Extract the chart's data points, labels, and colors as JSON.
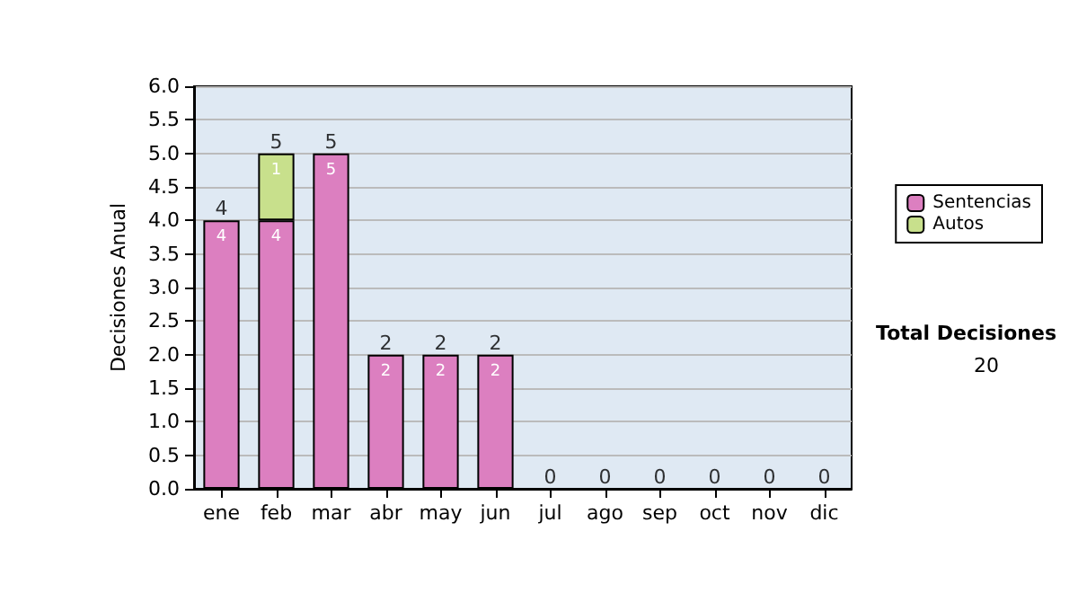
{
  "chart_data": {
    "type": "bar",
    "ylabel": "Decisiones Anual",
    "categories": [
      "ene",
      "feb",
      "mar",
      "abr",
      "may",
      "jun",
      "jul",
      "ago",
      "sep",
      "oct",
      "nov",
      "dic"
    ],
    "stacked": true,
    "series": [
      {
        "name": "Sentencias",
        "color": "#dc7fc0",
        "values": [
          4,
          4,
          5,
          2,
          2,
          2,
          0,
          0,
          0,
          0,
          0,
          0
        ],
        "value_labels": [
          "4",
          "4",
          "5",
          "2",
          "2",
          "2",
          null,
          null,
          null,
          null,
          null,
          null
        ]
      },
      {
        "name": "Autos",
        "color": "#c8e08c",
        "values": [
          0,
          1,
          0,
          0,
          0,
          0,
          0,
          0,
          0,
          0,
          0,
          0
        ],
        "value_labels": [
          null,
          "1",
          null,
          null,
          null,
          null,
          null,
          null,
          null,
          null,
          null,
          null
        ]
      }
    ],
    "totals": [
      "4",
      "5",
      "5",
      "2",
      "2",
      "2",
      "0",
      "0",
      "0",
      "0",
      "0",
      "0"
    ],
    "ylim": [
      0,
      6
    ],
    "yticks": [
      {
        "value": 0,
        "label": "0.0"
      },
      {
        "value": 0.5,
        "label": "0.5"
      },
      {
        "value": 1,
        "label": "1.0"
      },
      {
        "value": 1.5,
        "label": "1.5"
      },
      {
        "value": 2,
        "label": "2.0"
      },
      {
        "value": 2.5,
        "label": "2.5"
      },
      {
        "value": 3,
        "label": "3.0"
      },
      {
        "value": 3.5,
        "label": "3.5"
      },
      {
        "value": 4,
        "label": "4.0"
      },
      {
        "value": 4.5,
        "label": "4.5"
      },
      {
        "value": 5,
        "label": "5.0"
      },
      {
        "value": 5.5,
        "label": "5.5"
      },
      {
        "value": 6,
        "label": "6.0"
      }
    ],
    "grid": "y",
    "legend": "right",
    "annotations": [
      "Total Decisiones",
      "20"
    ]
  }
}
